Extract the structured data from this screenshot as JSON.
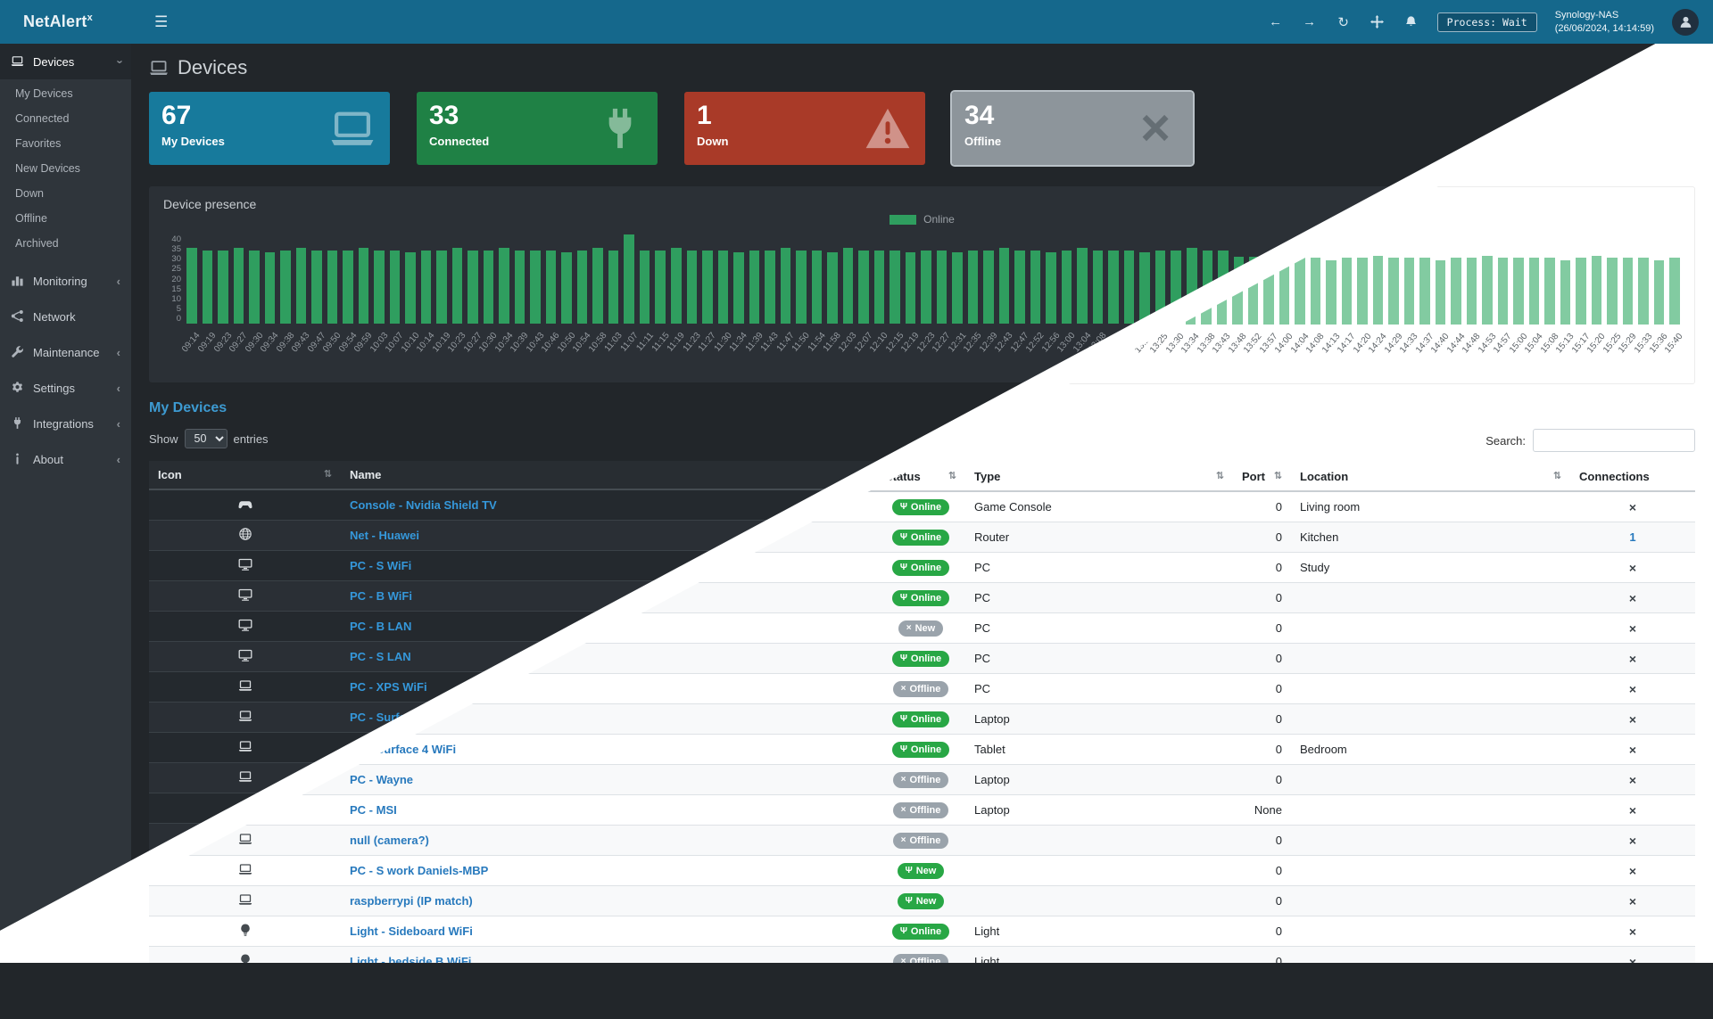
{
  "topbar": {
    "brand": "NetAlert",
    "brand_sup": "x",
    "nav_icons": {
      "back": "←",
      "forward": "→",
      "refresh": "↻"
    },
    "process_status": "Process: Wait",
    "host": "Synology-NAS",
    "timestamp": "(26/06/2024, 14:14:59)"
  },
  "sidebar": {
    "sections": [
      {
        "label": "Devices",
        "icon": "laptop-icon",
        "expanded": true,
        "children": [
          {
            "label": "My Devices"
          },
          {
            "label": "Connected"
          },
          {
            "label": "Favorites"
          },
          {
            "label": "New Devices"
          },
          {
            "label": "Down"
          },
          {
            "label": "Offline"
          },
          {
            "label": "Archived"
          }
        ]
      },
      {
        "label": "Monitoring",
        "icon": "chart-bar-icon"
      },
      {
        "label": "Network",
        "icon": "network-icon"
      },
      {
        "label": "Maintenance",
        "icon": "wrench-icon"
      },
      {
        "label": "Settings",
        "icon": "gear-icon"
      },
      {
        "label": "Integrations",
        "icon": "plug-icon"
      },
      {
        "label": "About",
        "icon": "info-icon"
      }
    ]
  },
  "page": {
    "title": "Devices",
    "icon": "laptop-icon"
  },
  "cards": [
    {
      "value": "67",
      "label": "My Devices",
      "color": "#177a9c",
      "icon": "laptop-icon"
    },
    {
      "value": "33",
      "label": "Connected",
      "color": "#1f8145",
      "icon": "plug-icon"
    },
    {
      "value": "1",
      "label": "Down",
      "color": "#a93a28",
      "icon": "warning-icon"
    },
    {
      "value": "34",
      "label": "Offline",
      "color": "#8d959b",
      "icon": "x-icon"
    }
  ],
  "chart_data": {
    "type": "bar",
    "title": "Device presence",
    "legend": [
      "Online"
    ],
    "legend_position": "top-center",
    "grid": false,
    "ylim": [
      0,
      40
    ],
    "yticks": [
      0,
      5,
      10,
      15,
      20,
      25,
      30,
      35,
      40
    ],
    "bar_color_dark": "#2f9e5f",
    "bar_color_light": "#82cba1",
    "x": [
      "09:14",
      "09:19",
      "09:23",
      "09:27",
      "09:30",
      "09:34",
      "09:38",
      "09:43",
      "09:47",
      "09:50",
      "09:54",
      "09:59",
      "10:03",
      "10:07",
      "10:10",
      "10:14",
      "10:19",
      "10:23",
      "10:27",
      "10:30",
      "10:34",
      "10:39",
      "10:43",
      "10:46",
      "10:50",
      "10:54",
      "10:58",
      "11:03",
      "11:07",
      "11:11",
      "11:15",
      "11:19",
      "11:23",
      "11:27",
      "11:30",
      "11:34",
      "11:39",
      "11:43",
      "11:47",
      "11:50",
      "11:54",
      "11:58",
      "12:03",
      "12:07",
      "12:10",
      "12:15",
      "12:19",
      "12:23",
      "12:27",
      "12:31",
      "12:35",
      "12:39",
      "12:43",
      "12:47",
      "12:52",
      "12:56",
      "13:00",
      "13:04",
      "13:08",
      "13:13",
      "13:17",
      "13:21",
      "13:25",
      "13:30",
      "13:34",
      "13:38",
      "13:43",
      "13:48",
      "13:52",
      "13:57",
      "14:00",
      "14:04",
      "14:08",
      "14:13",
      "14:17",
      "14:20",
      "14:24",
      "14:29",
      "14:33",
      "14:37",
      "14:40",
      "14:44",
      "14:48",
      "14:53",
      "14:57",
      "15:00",
      "15:04",
      "15:08",
      "15:13",
      "15:17",
      "15:20",
      "15:25",
      "15:29",
      "15:33",
      "15:36",
      "15:40"
    ],
    "series": [
      {
        "name": "Online",
        "values": [
          34,
          33,
          33,
          34,
          33,
          32,
          33,
          34,
          33,
          33,
          33,
          34,
          33,
          33,
          32,
          33,
          33,
          34,
          33,
          33,
          34,
          33,
          33,
          33,
          32,
          33,
          34,
          33,
          40,
          33,
          33,
          34,
          33,
          33,
          33,
          32,
          33,
          33,
          34,
          33,
          33,
          32,
          34,
          33,
          33,
          33,
          32,
          33,
          33,
          32,
          33,
          33,
          34,
          33,
          33,
          32,
          33,
          34,
          33,
          33,
          33,
          32,
          33,
          33,
          34,
          33,
          33,
          30,
          30,
          31,
          30,
          30,
          30,
          29,
          30,
          30,
          31,
          30,
          30,
          30,
          29,
          30,
          30,
          31,
          30,
          30,
          30,
          30,
          29,
          30,
          31,
          30,
          30,
          30,
          29,
          30
        ]
      }
    ]
  },
  "devices_table": {
    "title": "My Devices",
    "show_label": "Show",
    "page_length": "50",
    "entries_label": "entries",
    "search_label": "Search:",
    "search_value": "",
    "headers": [
      "Icon",
      "Name",
      "Status",
      "Type",
      "Port",
      "Location",
      "Connections"
    ],
    "rows": [
      {
        "icon": "gamepad-icon",
        "name": "Console - Nvidia Shield TV",
        "status": {
          "label": "Online",
          "color": "green",
          "icon": "plug-icon"
        },
        "type": "Game Console",
        "port": "0",
        "location": "Living room",
        "connections": "x"
      },
      {
        "icon": "globe-icon",
        "name": "Net - Huawei",
        "status": {
          "label": "Online",
          "color": "green",
          "icon": "plug-icon"
        },
        "type": "Router",
        "port": "0",
        "location": "Kitchen",
        "connections": "1"
      },
      {
        "icon": "display-icon",
        "name": "PC - S WiFi",
        "status": {
          "label": "Online",
          "color": "green",
          "icon": "plug-icon"
        },
        "type": "PC",
        "port": "0",
        "location": "Study",
        "connections": "x"
      },
      {
        "icon": "display-icon",
        "name": "PC - B WiFi",
        "status": {
          "label": "Online",
          "color": "green",
          "icon": "plug-icon"
        },
        "type": "PC",
        "port": "0",
        "location": "",
        "connections": "x"
      },
      {
        "icon": "display-icon",
        "name": "PC - B LAN",
        "status": {
          "label": "New",
          "color": "gray",
          "icon": "x-icon"
        },
        "type": "PC",
        "port": "0",
        "location": "",
        "connections": "x"
      },
      {
        "icon": "display-icon",
        "name": "PC - S LAN",
        "status": {
          "label": "Online",
          "color": "green",
          "icon": "plug-icon"
        },
        "type": "PC",
        "port": "0",
        "location": "",
        "connections": "x"
      },
      {
        "icon": "laptop-icon",
        "name": "PC - XPS WiFi",
        "status": {
          "label": "Offline",
          "color": "gray",
          "icon": "x-icon"
        },
        "type": "PC",
        "port": "0",
        "location": "",
        "connections": "x"
      },
      {
        "icon": "laptop-icon",
        "name": "PC - Surface",
        "status": {
          "label": "Online",
          "color": "green",
          "icon": "plug-icon"
        },
        "type": "Laptop",
        "port": "0",
        "location": "",
        "connections": "x"
      },
      {
        "icon": "laptop-icon",
        "name": "PC - Surface 4 WiFi",
        "status": {
          "label": "Online",
          "color": "green",
          "icon": "plug-icon"
        },
        "type": "Tablet",
        "port": "0",
        "location": "Bedroom",
        "connections": "x"
      },
      {
        "icon": "laptop-icon",
        "name": "PC - Wayne",
        "status": {
          "label": "Offline",
          "color": "gray",
          "icon": "x-icon"
        },
        "type": "Laptop",
        "port": "0",
        "location": "",
        "connections": "x"
      },
      {
        "icon": "laptop-icon",
        "name": "PC - MSI",
        "status": {
          "label": "Offline",
          "color": "gray",
          "icon": "x-icon"
        },
        "type": "Laptop",
        "port": "None",
        "location": "",
        "connections": "x"
      },
      {
        "icon": "laptop-icon",
        "name": "null (camera?)",
        "status": {
          "label": "Offline",
          "color": "gray",
          "icon": "x-icon"
        },
        "type": "",
        "port": "0",
        "location": "",
        "connections": "x"
      },
      {
        "icon": "laptop-icon",
        "name": "PC - S work Daniels-MBP",
        "status": {
          "label": "New",
          "color": "green",
          "icon": "plug-icon"
        },
        "type": "",
        "port": "0",
        "location": "",
        "connections": "x"
      },
      {
        "icon": "laptop-icon",
        "name": "raspberrypi (IP match)",
        "status": {
          "label": "New",
          "color": "green",
          "icon": "plug-icon"
        },
        "type": "",
        "port": "0",
        "location": "",
        "connections": "x"
      },
      {
        "icon": "bulb-icon",
        "name": "Light - Sideboard WiFi",
        "status": {
          "label": "Online",
          "color": "green",
          "icon": "plug-icon"
        },
        "type": "Light",
        "port": "0",
        "location": "",
        "connections": "x"
      },
      {
        "icon": "bulb-icon",
        "name": "Light - bedside B WiFi",
        "status": {
          "label": "Offline",
          "color": "gray",
          "icon": "x-icon"
        },
        "type": "Light",
        "port": "0",
        "location": "",
        "connections": "x"
      }
    ]
  }
}
